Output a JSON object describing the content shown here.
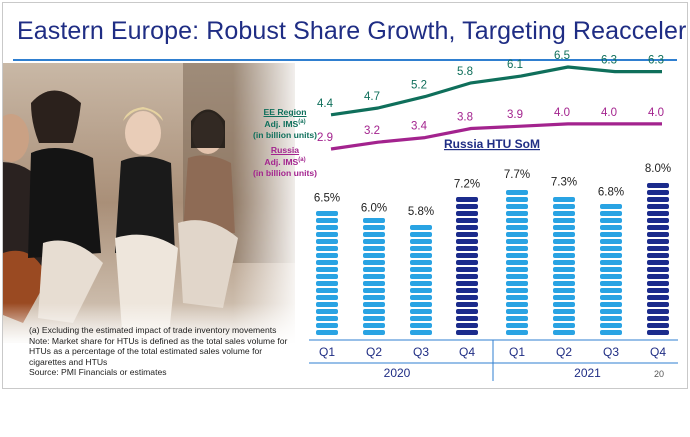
{
  "slide": {
    "title": "Eastern Europe: Robust Share Growth, Targeting Reacceleration",
    "page_number": "20"
  },
  "legend": {
    "ee": {
      "name": "EE Region",
      "line1": "Adj. IMS",
      "sup": "(a)",
      "line2": "(in billion units)",
      "color": "#0f6f5b"
    },
    "russia": {
      "name": "Russia",
      "line1": "Adj. IMS",
      "sup": "(a)",
      "line2": "(in billion units)",
      "color": "#a3238e"
    }
  },
  "notes": [
    "(a)  Excluding the estimated impact of trade inventory movements",
    "Note: Market share for HTUs is defined as the total sales volume for HTUs as a percentage of the total estimated sales volume for cigarettes and HTUs",
    "Source: PMI Financials or estimates"
  ],
  "chart_data": [
    {
      "type": "line",
      "title": "",
      "unit": "billion units",
      "categories": [
        "Q1 2020",
        "Q2 2020",
        "Q3 2020",
        "Q4 2020",
        "Q1 2021",
        "Q2 2021",
        "Q3 2021",
        "Q4 2021"
      ],
      "series": [
        {
          "name": "EE Region Adj. IMS",
          "color": "#0f6f5b",
          "values": [
            4.4,
            4.7,
            5.2,
            5.8,
            6.1,
            6.5,
            6.3,
            6.3
          ]
        },
        {
          "name": "Russia Adj. IMS",
          "color": "#a3238e",
          "values": [
            2.9,
            3.2,
            3.4,
            3.8,
            3.9,
            4.0,
            4.0,
            4.0
          ]
        }
      ]
    },
    {
      "type": "bar",
      "title": "Russia HTU SoM",
      "categories": [
        "Q1",
        "Q2",
        "Q3",
        "Q4",
        "Q1",
        "Q2",
        "Q3",
        "Q4"
      ],
      "groups": [
        {
          "label": "2020",
          "span": [
            0,
            3
          ]
        },
        {
          "label": "2021",
          "span": [
            4,
            7
          ]
        }
      ],
      "values": [
        6.5,
        6.0,
        5.8,
        7.2,
        7.7,
        7.3,
        6.8,
        8.0
      ],
      "value_labels": [
        "6.5%",
        "6.0%",
        "5.8%",
        "7.2%",
        "7.7%",
        "7.3%",
        "6.8%",
        "8.0%"
      ],
      "bar_colors": [
        "#29a3e3",
        "#29a3e3",
        "#29a3e3",
        "#1b2b8c",
        "#29a3e3",
        "#29a3e3",
        "#29a3e3",
        "#1b2b8c"
      ],
      "ylim": [
        0,
        8.0
      ]
    }
  ]
}
